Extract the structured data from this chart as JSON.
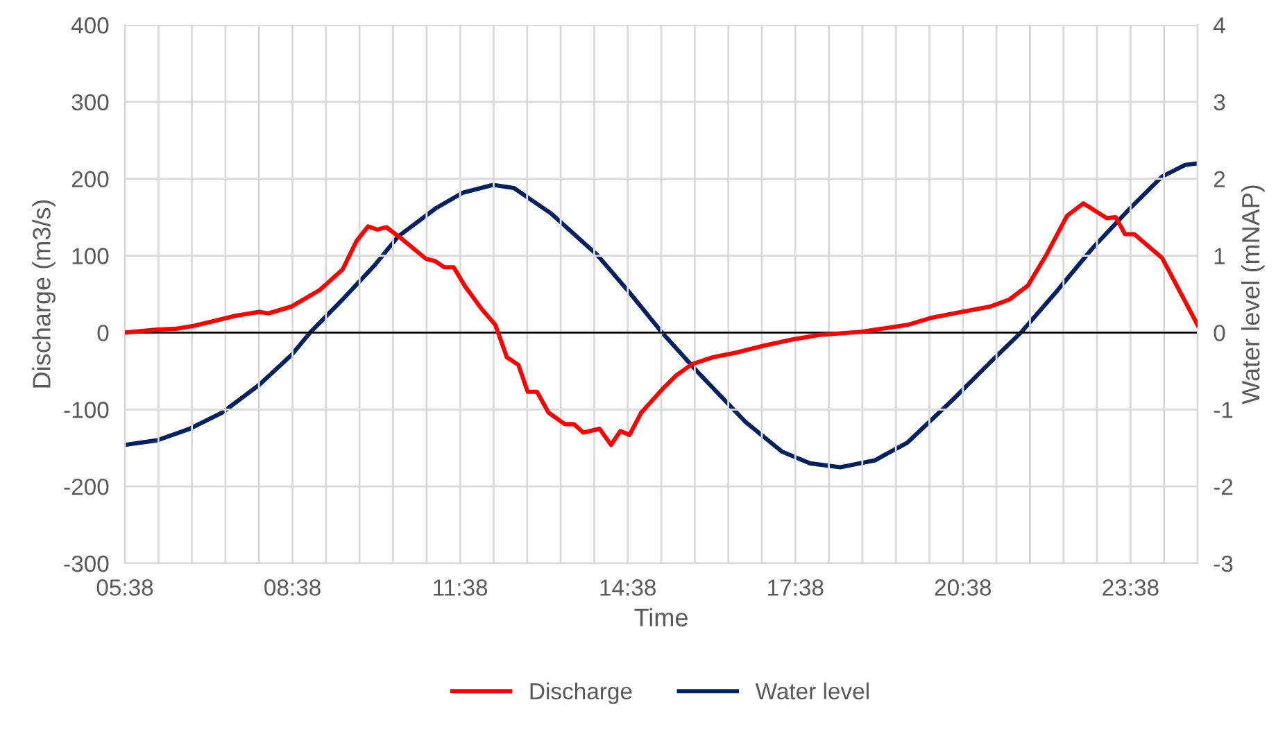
{
  "chart_data": {
    "type": "line",
    "xlabel": "Time",
    "ylabel": "Discharge (m3/s)",
    "y2label": "Water level (mNAP)",
    "xlim": [
      5.633,
      24.833
    ],
    "xticks": [
      {
        "value": 5.633,
        "label": "05:38"
      },
      {
        "value": 6.233,
        "label": null
      },
      {
        "value": 6.833,
        "label": null
      },
      {
        "value": 7.433,
        "label": null
      },
      {
        "value": 8.033,
        "label": null
      },
      {
        "value": 8.633,
        "label": "08:38"
      },
      {
        "value": 9.233,
        "label": null
      },
      {
        "value": 9.833,
        "label": null
      },
      {
        "value": 10.433,
        "label": null
      },
      {
        "value": 11.033,
        "label": null
      },
      {
        "value": 11.633,
        "label": "11:38"
      },
      {
        "value": 12.233,
        "label": null
      },
      {
        "value": 12.833,
        "label": null
      },
      {
        "value": 13.433,
        "label": null
      },
      {
        "value": 14.033,
        "label": null
      },
      {
        "value": 14.633,
        "label": "14:38"
      },
      {
        "value": 15.233,
        "label": null
      },
      {
        "value": 15.833,
        "label": null
      },
      {
        "value": 16.433,
        "label": null
      },
      {
        "value": 17.033,
        "label": null
      },
      {
        "value": 17.633,
        "label": "17:38"
      },
      {
        "value": 18.233,
        "label": null
      },
      {
        "value": 18.833,
        "label": null
      },
      {
        "value": 19.433,
        "label": null
      },
      {
        "value": 20.033,
        "label": null
      },
      {
        "value": 20.633,
        "label": "20:38"
      },
      {
        "value": 21.233,
        "label": null
      },
      {
        "value": 21.833,
        "label": null
      },
      {
        "value": 22.433,
        "label": null
      },
      {
        "value": 23.033,
        "label": null
      },
      {
        "value": 23.633,
        "label": "23:38"
      },
      {
        "value": 24.233,
        "label": null
      },
      {
        "value": 24.833,
        "label": null
      }
    ],
    "ylim": [
      -300,
      400
    ],
    "yticks": [
      -300,
      -200,
      -100,
      0,
      100,
      200,
      300,
      400
    ],
    "y2lim": [
      -3,
      4
    ],
    "y2ticks": [
      -3,
      -2,
      -1,
      0,
      1,
      2,
      3,
      4
    ],
    "grid": true,
    "legend": "bottom",
    "marker": "none",
    "line_style": "solid",
    "ref_lines": [
      {
        "axis": "y",
        "value": 0,
        "color": "#000000"
      }
    ],
    "series": [
      {
        "name": "Discharge",
        "color": "#ff0000",
        "x": [
          5.633,
          6.212,
          6.545,
          6.876,
          7.622,
          8.037,
          8.201,
          8.617,
          9.114,
          9.529,
          9.778,
          9.985,
          10.151,
          10.314,
          10.605,
          11.021,
          11.185,
          11.351,
          11.518,
          11.724,
          12.015,
          12.264,
          12.47,
          12.677,
          12.843,
          13.01,
          13.216,
          13.507,
          13.671,
          13.838,
          14.129,
          14.335,
          14.502,
          14.666,
          14.875,
          15.248,
          15.496,
          15.785,
          16.158,
          16.573,
          17.07,
          17.568,
          18.065,
          18.811,
          19.639,
          20.054,
          20.469,
          21.13,
          21.464,
          21.794,
          22.125,
          22.498,
          22.789,
          23.204,
          23.368,
          23.535,
          23.701,
          24.199,
          24.833
        ],
        "values": [
          0,
          4,
          5,
          9,
          22,
          27,
          25,
          34,
          55,
          82,
          119,
          138,
          134,
          137,
          121,
          96,
          93,
          85,
          85,
          60,
          31,
          10,
          -32,
          -42,
          -77,
          -77,
          -104,
          -119,
          -119,
          -130,
          -125,
          -146,
          -128,
          -133,
          -104,
          -74,
          -56,
          -41,
          -32,
          -26,
          -17,
          -9,
          -3,
          1,
          10,
          19,
          25,
          34,
          43,
          61,
          101,
          152,
          168,
          149,
          150,
          128,
          128,
          97,
          10
        ]
      },
      {
        "name": "Water level",
        "color": "#002060",
        "axis": "y2",
        "x": [
          5.633,
          6.212,
          6.794,
          7.374,
          8.037,
          8.617,
          8.947,
          9.529,
          10.108,
          10.524,
          11.185,
          11.682,
          12.222,
          12.595,
          13.259,
          14.087,
          14.666,
          15.248,
          15.909,
          16.74,
          17.401,
          17.898,
          18.438,
          19.059,
          19.639,
          20.469,
          21.13,
          21.67,
          22.292,
          22.955,
          23.617,
          24.199,
          24.611,
          24.833
        ],
        "values": [
          -1.46,
          -1.4,
          -1.25,
          -1.04,
          -0.68,
          -0.29,
          0,
          0.43,
          0.88,
          1.25,
          1.61,
          1.82,
          1.92,
          1.88,
          1.55,
          1.01,
          0.52,
          0,
          -0.53,
          -1.16,
          -1.55,
          -1.7,
          -1.75,
          -1.66,
          -1.43,
          -0.86,
          -0.38,
          0,
          0.52,
          1.1,
          1.61,
          2.03,
          2.18,
          2.2
        ]
      }
    ]
  }
}
